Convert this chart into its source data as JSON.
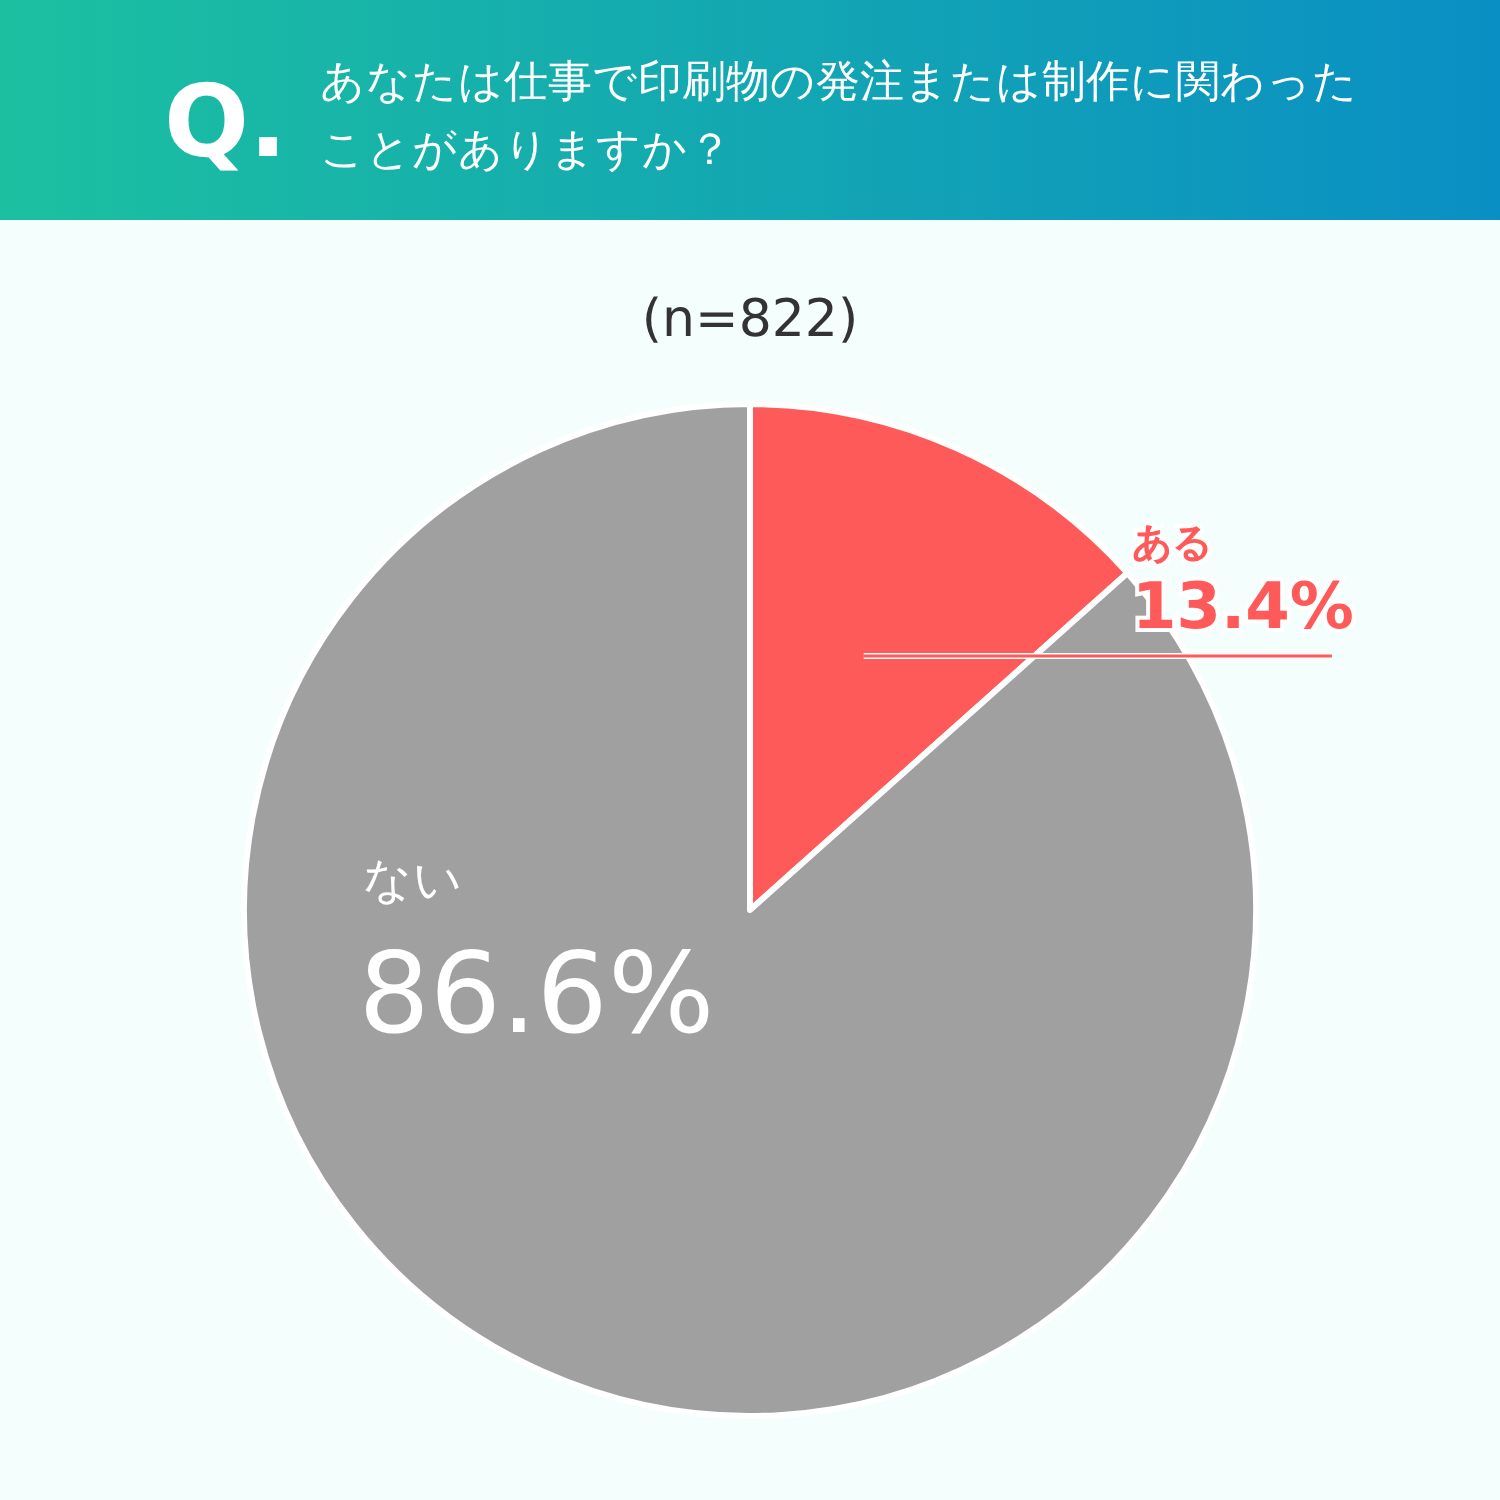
{
  "chart_data": {
    "type": "pie",
    "title": "あなたは仕事で印刷物の発注または制作に関わったことがありますか？",
    "subtitle": "(n=822)",
    "annotations": [
      "Q."
    ],
    "categories": [
      "ある",
      "ない"
    ],
    "values": [
      13.4,
      86.6
    ],
    "colors": [
      "#ff5a5a",
      "#a0a0a0"
    ],
    "value_labels": [
      "13.4%",
      "86.6%"
    ]
  }
}
